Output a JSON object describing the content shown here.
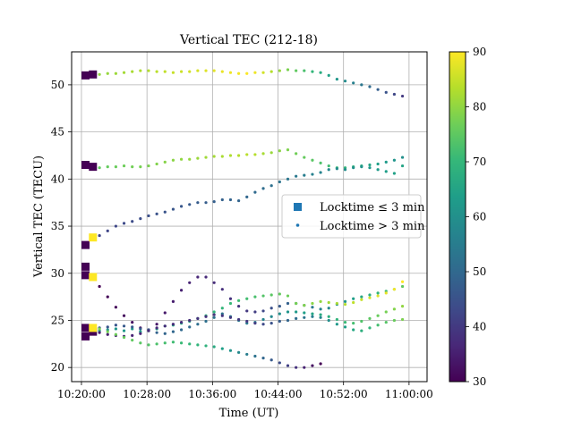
{
  "chart_data": {
    "type": "scatter",
    "title": "Vertical TEC (212-18)",
    "xlabel": "Time (UT)",
    "ylabel": "Vertical TEC (TECU)",
    "x_ticks": [
      "10:20:00",
      "10:28:00",
      "10:36:00",
      "10:44:00",
      "10:52:00",
      "11:00:00"
    ],
    "x_tick_minutes": [
      0,
      8,
      16,
      24,
      32,
      40
    ],
    "xlim_minutes": [
      -1.2,
      42.2
    ],
    "y_ticks": [
      20,
      25,
      30,
      35,
      40,
      45,
      50
    ],
    "ylim": [
      18.5,
      53.5
    ],
    "grid": true,
    "legend_position": "center-right",
    "legend": [
      {
        "name": "Locktime ≤ 3 min",
        "marker": "square"
      },
      {
        "name": "Locktime > 3 min",
        "marker": "dot"
      }
    ],
    "colorbar": {
      "min": 30,
      "max": 90,
      "ticks": [
        30,
        40,
        50,
        60,
        70,
        80,
        90
      ],
      "colormap": [
        "#440154",
        "#482878",
        "#3e4a89",
        "#31688e",
        "#26828e",
        "#1f9e89",
        "#35b779",
        "#6ece58",
        "#b5de2b",
        "#fde725"
      ]
    },
    "series": [
      {
        "name": "Locktime ≤ 3 min",
        "marker": "square",
        "points": [
          [
            0.5,
            51.0,
            30
          ],
          [
            1.4,
            51.1,
            30
          ],
          [
            0.5,
            41.5,
            30
          ],
          [
            1.4,
            41.3,
            30
          ],
          [
            0.5,
            33.0,
            30
          ],
          [
            1.4,
            33.8,
            90
          ],
          [
            0.5,
            30.7,
            30
          ],
          [
            0.5,
            29.8,
            30
          ],
          [
            1.4,
            29.6,
            90
          ],
          [
            0.5,
            24.2,
            30
          ],
          [
            0.5,
            23.3,
            30
          ],
          [
            1.4,
            23.8,
            30
          ],
          [
            1.4,
            24.2,
            90
          ]
        ]
      },
      {
        "name": "Locktime > 3 min",
        "marker": "dot",
        "tracks": [
          {
            "x0": 2.2,
            "dx": 1,
            "c0": 80,
            "c1": 90,
            "c2": 40,
            "y": [
              51.1,
              51.2,
              51.2,
              51.3,
              51.4,
              51.5,
              51.5,
              51.4,
              51.4,
              51.3,
              51.4,
              51.4,
              51.5,
              51.5,
              51.5,
              51.4,
              51.3,
              51.2,
              51.2,
              51.3,
              51.3,
              51.4,
              51.5,
              51.6,
              51.5,
              51.5,
              51.4,
              51.3,
              51.0,
              50.6,
              50.4,
              50.2,
              50.0,
              49.8,
              49.5,
              49.2,
              49.0,
              48.8
            ]
          },
          {
            "x0": 2.2,
            "dx": 1,
            "c0": 75,
            "c1": 84,
            "c2": 60,
            "y": [
              41.2,
              41.3,
              41.3,
              41.4,
              41.3,
              41.3,
              41.4,
              41.6,
              41.8,
              42.0,
              42.1,
              42.1,
              42.2,
              42.3,
              42.4,
              42.4,
              42.5,
              42.5,
              42.6,
              42.6,
              42.7,
              42.8,
              43.0,
              43.1,
              42.7,
              42.3,
              42.0,
              41.7,
              41.4,
              41.2,
              41.2,
              41.3,
              41.4,
              41.5,
              41.6,
              41.8,
              42.0,
              42.3
            ]
          },
          {
            "x0": 2.2,
            "dx": 1,
            "c0": 42,
            "c1": 50,
            "c2": 65,
            "y": [
              34.0,
              34.5,
              35.0,
              35.3,
              35.5,
              35.8,
              36.1,
              36.3,
              36.5,
              36.8,
              37.1,
              37.3,
              37.5,
              37.5,
              37.6,
              37.8,
              37.8,
              37.7,
              38.1,
              38.6,
              39.0,
              39.3,
              39.7,
              40.0,
              40.3,
              40.4,
              40.5,
              40.7,
              41.0,
              41.1,
              41.0,
              41.2,
              41.3,
              41.2,
              41.0,
              40.8,
              40.6,
              41.4
            ]
          },
          {
            "x0": 2.2,
            "dx": 1,
            "c0": 30,
            "c1": 40,
            "c2": 75,
            "y": [
              28.6,
              27.5,
              26.4,
              25.5,
              24.8,
              24.2,
              24.0,
              24.6,
              25.8,
              27.0,
              28.2,
              29.0,
              29.6,
              29.6,
              29.0,
              28.3,
              27.3,
              26.5,
              26.0,
              25.9,
              26.0,
              26.3,
              26.5,
              26.8,
              26.8,
              26.6,
              26.4,
              26.2,
              26.3,
              26.7,
              27.0,
              27.3,
              27.5,
              27.7,
              27.9,
              28.1,
              28.3,
              28.6
            ]
          },
          {
            "x0": 2.2,
            "dx": 1,
            "c0": 60,
            "c1": 72,
            "c2": 90,
            "y": [
              23.9,
              24.0,
              24.1,
              23.9,
              24.1,
              23.8,
              23.9,
              24.1,
              24.4,
              24.5,
              24.7,
              24.9,
              25.2,
              25.5,
              25.9,
              26.3,
              26.8,
              27.1,
              27.3,
              27.5,
              27.6,
              27.7,
              27.8,
              27.6,
              26.8,
              26.6,
              26.8,
              27.0,
              26.9,
              26.8,
              26.7,
              26.9,
              27.2,
              27.4,
              27.6,
              27.9,
              28.3,
              29.1
            ]
          },
          {
            "x0": 2.2,
            "dx": 1,
            "c0": 45,
            "c1": 55,
            "c2": 80,
            "y": [
              24.2,
              24.3,
              24.5,
              24.4,
              24.3,
              24.1,
              24.0,
              23.7,
              23.6,
              23.8,
              24.0,
              24.3,
              24.6,
              24.9,
              25.3,
              25.7,
              25.4,
              25.0,
              24.7,
              24.8,
              25.1,
              25.4,
              25.7,
              25.9,
              25.9,
              25.8,
              25.7,
              25.6,
              25.4,
              25.1,
              24.8,
              24.7,
              24.9,
              25.2,
              25.5,
              25.9,
              26.2,
              26.5
            ]
          },
          {
            "x0": 2.2,
            "dx": 1,
            "c0": 35,
            "c1": 40,
            "c2": 78,
            "y": [
              23.7,
              23.5,
              23.4,
              23.3,
              23.4,
              23.6,
              23.9,
              24.2,
              24.4,
              24.6,
              24.8,
              25.0,
              25.2,
              25.4,
              25.6,
              25.5,
              25.3,
              25.1,
              24.9,
              24.7,
              24.6,
              24.7,
              24.9,
              25.0,
              25.2,
              25.3,
              25.4,
              25.3,
              25.0,
              24.6,
              24.3,
              24.0,
              23.9,
              24.2,
              24.5,
              24.8,
              25.0,
              25.1
            ]
          },
          {
            "x0": 2.2,
            "dx": 1,
            "c0": 78,
            "c1": 68,
            "c2": 30,
            "y": [
              24.1,
              23.8,
              23.5,
              23.2,
              22.9,
              22.6,
              22.4,
              22.5,
              22.6,
              22.7,
              22.6,
              22.5,
              22.4,
              22.3,
              22.2,
              22.0,
              21.8,
              21.6,
              21.4,
              21.2,
              21.0,
              20.8,
              20.5,
              20.2,
              20.0,
              20.0,
              20.2,
              20.4
            ]
          }
        ]
      }
    ]
  }
}
